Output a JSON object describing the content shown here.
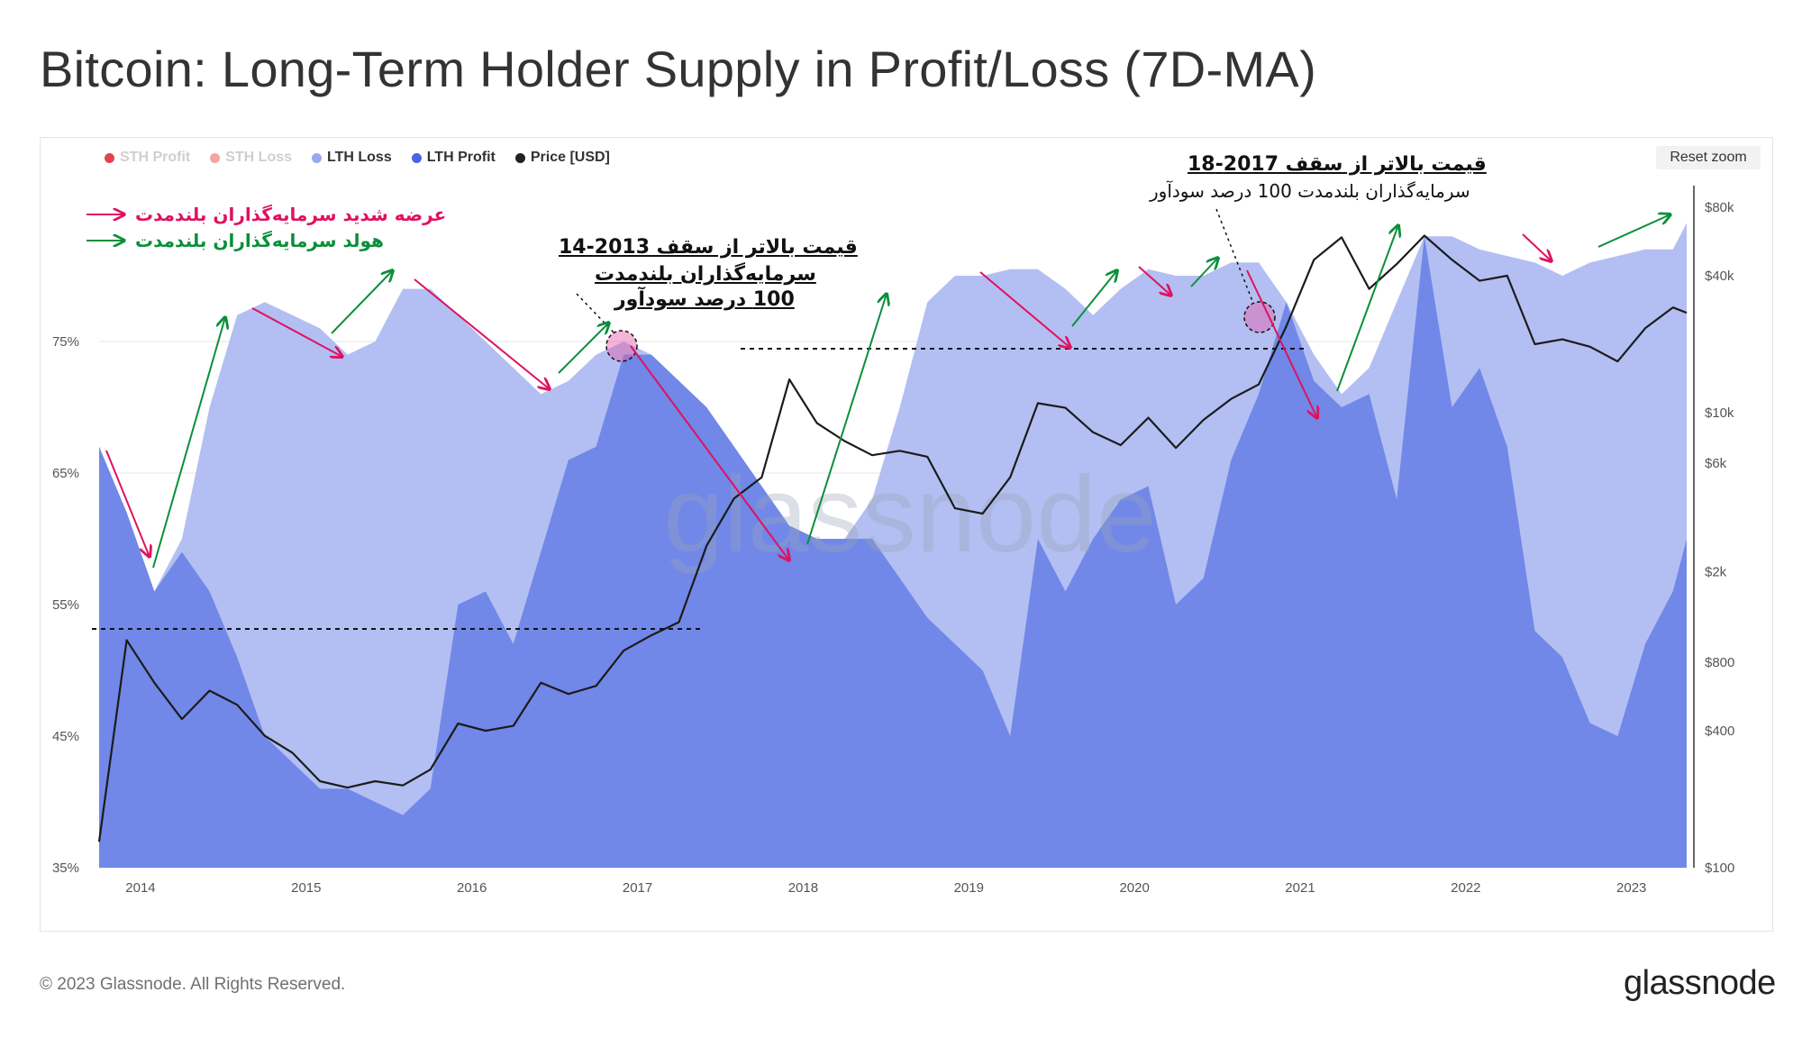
{
  "title": "Bitcoin: Long-Term Holder Supply in Profit/Loss (7D-MA)",
  "footer": "© 2023 Glassnode. All Rights Reserved.",
  "brand": "glassnode",
  "watermark": "glassnode",
  "reset_zoom_label": "Reset zoom",
  "colors": {
    "sth_profit": "#e0454f",
    "sth_loss": "#f0a6a6",
    "lth_loss": "#b3bff2",
    "lth_profit": "#7188e8",
    "price": "#1b1b1b",
    "annotation_red": "#e0115f",
    "annotation_green": "#0a8f3a"
  },
  "legend": [
    {
      "label": "STH Profit",
      "color": "#e0454f",
      "active": false
    },
    {
      "label": "STH Loss",
      "color": "#f0a6a6",
      "active": false
    },
    {
      "label": "LTH Loss",
      "color": "#98a8ee",
      "active": true
    },
    {
      "label": "LTH Profit",
      "color": "#4c64e0",
      "active": true
    },
    {
      "label": "Price [USD]",
      "color": "#222222",
      "active": true
    }
  ],
  "annotations": {
    "legend_red": "عرضه شدید سرمایه‌گذاران بلندمدت",
    "legend_green": "هولد سرمایه‌گذاران بلندمدت",
    "note_2017_title": "قیمت بالاتر از سقف  2013-14",
    "note_2017_line2": "سرمایه‌گذاران بلندمدت",
    "note_2017_line3": "100 درصد سودآور",
    "note_2021_title": "قیمت بالاتر از سقف 2017-18",
    "note_2021_line2": "سرمایه‌گذاران بلندمدت 100 درصد سودآور"
  },
  "chart_data": {
    "type": "area",
    "title": "Bitcoin: Long-Term Holder Supply in Profit/Loss (7D-MA)",
    "x_axis": {
      "type": "date",
      "range": [
        "2013-10",
        "2023-05"
      ],
      "tick_labels": [
        "2014",
        "2015",
        "2016",
        "2017",
        "2018",
        "2019",
        "2020",
        "2021",
        "2022",
        "2023"
      ]
    },
    "y_axis_left": {
      "ticks": [
        "35%",
        "45%",
        "55%",
        "65%",
        "75%"
      ],
      "range": [
        35,
        85
      ],
      "unit": "% of supply"
    },
    "y_axis_right": {
      "scale": "log",
      "ticks": [
        "$100",
        "$400",
        "$800",
        "$2k",
        "$6k",
        "$10k",
        "$40k",
        "$80k"
      ],
      "range": [
        100,
        100000
      ]
    },
    "legend_position": "top-left",
    "grid": true,
    "series": [
      {
        "name": "LTH Loss",
        "kind": "total_lth_area_pct",
        "x": [
          "2013-10",
          "2013-12",
          "2014-02",
          "2014-04",
          "2014-06",
          "2014-08",
          "2014-10",
          "2014-12",
          "2015-02",
          "2015-04",
          "2015-06",
          "2015-08",
          "2015-10",
          "2015-12",
          "2016-02",
          "2016-04",
          "2016-06",
          "2016-08",
          "2016-10",
          "2016-12",
          "2017-02",
          "2017-04",
          "2017-06",
          "2017-08",
          "2017-10",
          "2017-12",
          "2018-02",
          "2018-04",
          "2018-06",
          "2018-08",
          "2018-10",
          "2018-12",
          "2019-02",
          "2019-04",
          "2019-06",
          "2019-08",
          "2019-10",
          "2019-12",
          "2020-02",
          "2020-04",
          "2020-06",
          "2020-08",
          "2020-10",
          "2020-12",
          "2021-02",
          "2021-04",
          "2021-06",
          "2021-08",
          "2021-10",
          "2021-12",
          "2022-02",
          "2022-04",
          "2022-06",
          "2022-08",
          "2022-10",
          "2022-12",
          "2023-02",
          "2023-04",
          "2023-05"
        ],
        "values": [
          67,
          62,
          56,
          60,
          70,
          77,
          78,
          77,
          76,
          74,
          75,
          79,
          79,
          77,
          75,
          73,
          71,
          72,
          74,
          75,
          74,
          72,
          70,
          67,
          64,
          61,
          60,
          60,
          63,
          70,
          78,
          80,
          80,
          80.5,
          80.5,
          79,
          77,
          79,
          80.5,
          80,
          80,
          81,
          81,
          78,
          74,
          71,
          73,
          78,
          83,
          83,
          82,
          81.5,
          81,
          80,
          81,
          81.5,
          82,
          82,
          84
        ]
      },
      {
        "name": "LTH Profit",
        "kind": "area_pct",
        "x": [
          "2013-10",
          "2013-12",
          "2014-02",
          "2014-04",
          "2014-06",
          "2014-08",
          "2014-10",
          "2014-12",
          "2015-02",
          "2015-04",
          "2015-06",
          "2015-08",
          "2015-10",
          "2015-12",
          "2016-02",
          "2016-04",
          "2016-06",
          "2016-08",
          "2016-10",
          "2016-12",
          "2017-02",
          "2017-04",
          "2017-06",
          "2017-08",
          "2017-10",
          "2017-12",
          "2018-02",
          "2018-04",
          "2018-06",
          "2018-08",
          "2018-10",
          "2018-12",
          "2019-02",
          "2019-04",
          "2019-06",
          "2019-08",
          "2019-10",
          "2019-12",
          "2020-02",
          "2020-04",
          "2020-06",
          "2020-08",
          "2020-10",
          "2020-12",
          "2021-02",
          "2021-04",
          "2021-06",
          "2021-08",
          "2021-10",
          "2021-12",
          "2022-02",
          "2022-04",
          "2022-06",
          "2022-08",
          "2022-10",
          "2022-12",
          "2023-02",
          "2023-04",
          "2023-05"
        ],
        "values": [
          67,
          62,
          56,
          59,
          56,
          51,
          45,
          43,
          41,
          41,
          40,
          39,
          41,
          55,
          56,
          52,
          59,
          66,
          67,
          74,
          74,
          72,
          70,
          67,
          64,
          61,
          60,
          60,
          60,
          57,
          54,
          52,
          50,
          45,
          60,
          56,
          60,
          63,
          64,
          55,
          57,
          66,
          71,
          78,
          72,
          70,
          71,
          63,
          83,
          70,
          73,
          67,
          53,
          51,
          46,
          45,
          52,
          56,
          60
        ]
      },
      {
        "name": "Price [USD]",
        "kind": "log_price",
        "x": [
          "2013-10",
          "2013-12",
          "2014-02",
          "2014-04",
          "2014-06",
          "2014-08",
          "2014-10",
          "2014-12",
          "2015-02",
          "2015-04",
          "2015-06",
          "2015-08",
          "2015-10",
          "2015-12",
          "2016-02",
          "2016-04",
          "2016-06",
          "2016-08",
          "2016-10",
          "2016-12",
          "2017-02",
          "2017-04",
          "2017-06",
          "2017-08",
          "2017-10",
          "2017-12",
          "2018-02",
          "2018-04",
          "2018-06",
          "2018-08",
          "2018-10",
          "2018-12",
          "2019-02",
          "2019-04",
          "2019-06",
          "2019-08",
          "2019-10",
          "2019-12",
          "2020-02",
          "2020-04",
          "2020-06",
          "2020-08",
          "2020-10",
          "2020-12",
          "2021-02",
          "2021-04",
          "2021-06",
          "2021-08",
          "2021-10",
          "2021-12",
          "2022-02",
          "2022-04",
          "2022-06",
          "2022-08",
          "2022-10",
          "2022-12",
          "2023-02",
          "2023-04",
          "2023-05"
        ],
        "values": [
          130,
          1000,
          650,
          450,
          600,
          520,
          380,
          320,
          240,
          225,
          240,
          230,
          270,
          430,
          400,
          420,
          650,
          580,
          630,
          900,
          1050,
          1200,
          2600,
          4200,
          5200,
          14000,
          9000,
          7500,
          6500,
          6800,
          6400,
          3800,
          3600,
          5200,
          11000,
          10500,
          8200,
          7200,
          9500,
          7000,
          9300,
          11500,
          13300,
          24000,
          47000,
          59000,
          35000,
          45000,
          60000,
          47000,
          38000,
          40000,
          20000,
          21000,
          19500,
          16800,
          23500,
          29000,
          27500
        ]
      }
    ]
  }
}
